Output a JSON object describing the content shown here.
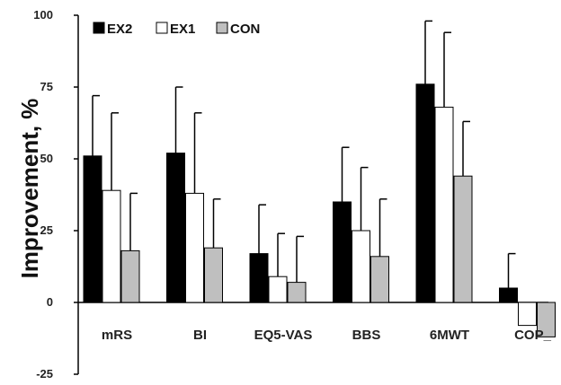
{
  "chart_data": {
    "type": "bar",
    "title": "",
    "xlabel": "",
    "ylabel": "Improvement, %",
    "ylim": [
      -25,
      100
    ],
    "yticks": [
      -25,
      0,
      25,
      50,
      75,
      100
    ],
    "ytick_labels": [
      "-25",
      "0",
      "25",
      "50",
      "75",
      "100"
    ],
    "grid": false,
    "legend_position": "top-left",
    "categories": [
      "mRS",
      "BI",
      "EQ5-VAS",
      "BBS",
      "6MWT",
      "COP_"
    ],
    "series": [
      {
        "name": "EX2",
        "color": "#000000",
        "values": [
          51,
          52,
          17,
          35,
          76,
          5
        ],
        "error": [
          21,
          23,
          17,
          19,
          22,
          12
        ]
      },
      {
        "name": "EX1",
        "color": "#ffffff",
        "values": [
          39,
          38,
          9,
          25,
          68,
          -8
        ],
        "error": [
          27,
          28,
          15,
          22,
          26,
          0
        ]
      },
      {
        "name": "CON",
        "color": "#bfbfbf",
        "values": [
          18,
          19,
          7,
          16,
          44,
          -12
        ],
        "error": [
          20,
          17,
          16,
          20,
          19,
          0
        ]
      }
    ]
  }
}
